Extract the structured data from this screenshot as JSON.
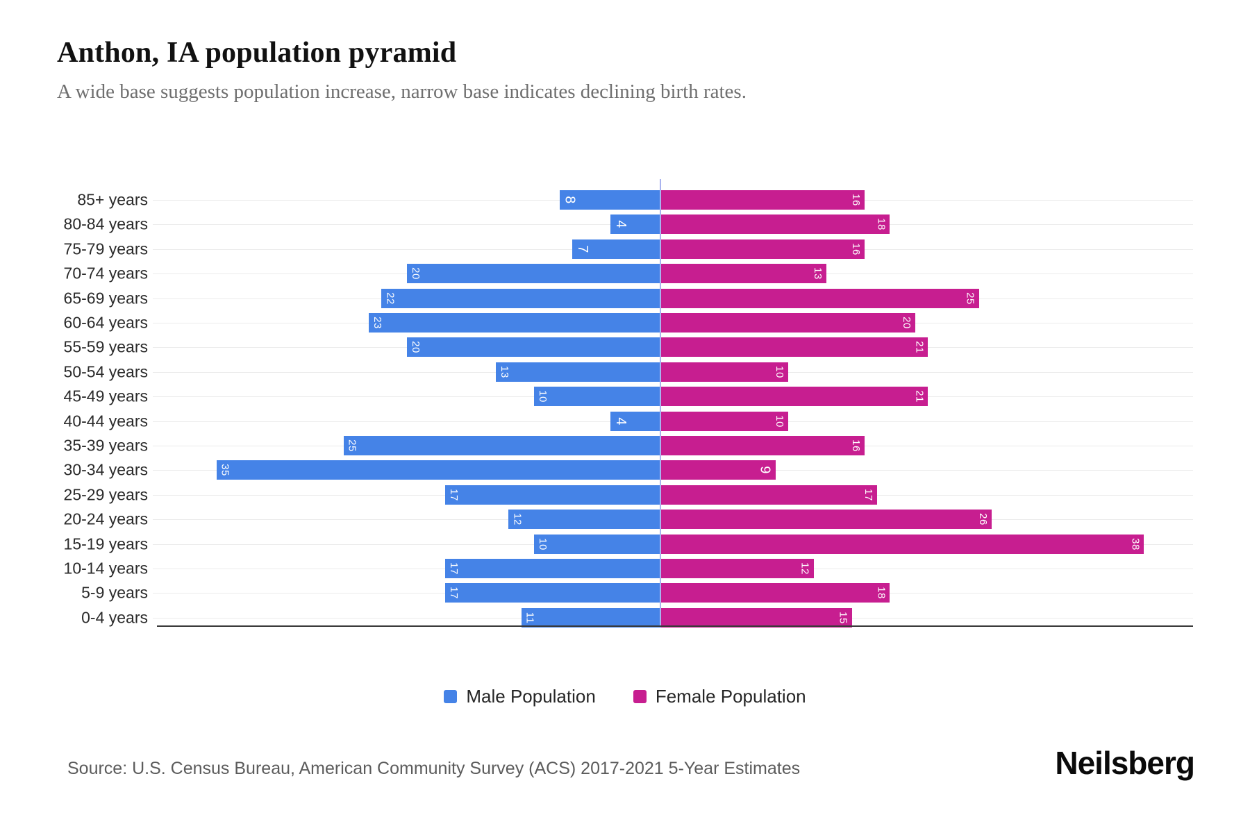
{
  "title": "Anthon, IA population pyramid",
  "subtitle": "A wide base suggests population increase, narrow base indicates declining birth rates.",
  "source": "Source: U.S. Census Bureau, American Community Survey (ACS) 2017-2021 5-Year Estimates",
  "brand": "Neilsberg",
  "colors": {
    "male": "#4583E7",
    "female": "#C71E90",
    "centerline": "#a9b3ef",
    "gridline": "#ebebeb"
  },
  "legend": [
    {
      "label": "Male Population",
      "color": "#4583E7"
    },
    {
      "label": "Female Population",
      "color": "#C71E90"
    }
  ],
  "chart_data": {
    "type": "bar",
    "variant": "population-pyramid",
    "title": "Anthon, IA population pyramid",
    "categories": [
      "85+ years",
      "80-84 years",
      "75-79 years",
      "70-74 years",
      "65-69 years",
      "60-64 years",
      "55-59 years",
      "50-54 years",
      "45-49 years",
      "40-44 years",
      "35-39 years",
      "30-34 years",
      "25-29 years",
      "20-24 years",
      "15-19 years",
      "10-14 years",
      "5-9 years",
      "0-4 years"
    ],
    "series": [
      {
        "name": "Male Population",
        "side": "left",
        "color": "#4583E7",
        "values": [
          8,
          4,
          7,
          20,
          22,
          23,
          20,
          13,
          10,
          4,
          25,
          35,
          17,
          12,
          10,
          17,
          17,
          11
        ]
      },
      {
        "name": "Female Population",
        "side": "right",
        "color": "#C71E90",
        "values": [
          16,
          18,
          16,
          13,
          25,
          20,
          21,
          10,
          21,
          10,
          16,
          9,
          17,
          26,
          38,
          12,
          18,
          15
        ]
      }
    ],
    "value_axis_max_per_side": 40,
    "grid": true,
    "legend_position": "bottom",
    "data_labels": "inside-end, white, rotated 90deg"
  }
}
